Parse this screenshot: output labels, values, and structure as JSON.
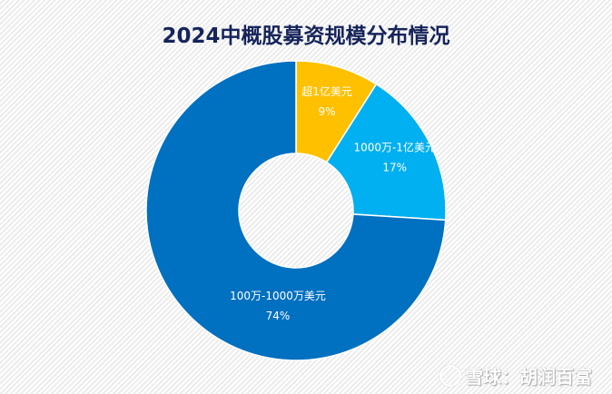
{
  "chart_data": {
    "type": "pie",
    "donut": true,
    "title": "2024中概股募资规模分布情况",
    "start_angle": "12 o'clock",
    "direction": "clockwise",
    "slices": [
      {
        "label": "超1亿美元",
        "value": 9,
        "value_label": "9%",
        "color": "#FFC000"
      },
      {
        "label": "1000万-1亿美元",
        "value": 17,
        "value_label": "17%",
        "color": "#00B0F0"
      },
      {
        "label": "100万-1000万美元",
        "value": 74,
        "value_label": "74%",
        "color": "#0070C0"
      }
    ],
    "legend": "none"
  },
  "watermark": {
    "text": "雪球：胡润百富"
  },
  "colors": {
    "title": "#16245a",
    "label": "#ffffff"
  }
}
